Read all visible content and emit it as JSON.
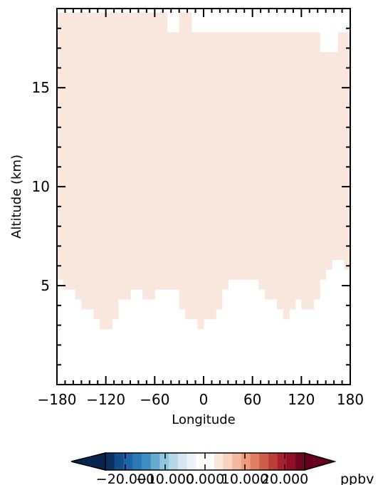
{
  "chart_data": {
    "type": "heatmap",
    "title": "",
    "xlabel": "Longitude",
    "ylabel": "Altitude (km)",
    "xlim": [
      -180,
      180
    ],
    "ylim": [
      0,
      19
    ],
    "xticks": [
      -180,
      -120,
      -60,
      0,
      60,
      120,
      180
    ],
    "xtick_labels": [
      "−180",
      "−120",
      "−60",
      "0",
      "60",
      "120",
      "180"
    ],
    "yticks": [
      5,
      10,
      15
    ],
    "ytick_labels": [
      "5",
      "10",
      "15"
    ],
    "grid": false,
    "fill_color": "#f9e6dc",
    "fill_value_ppbv": 0.5,
    "filled_region_by_longitude_bin": {
      "bin_width_deg": 7.5,
      "lon_start": -180,
      "bottom_km": [
        5.3,
        4.8,
        4.8,
        4.3,
        3.8,
        3.8,
        3.3,
        2.8,
        2.8,
        3.3,
        4.3,
        4.3,
        4.8,
        4.8,
        4.3,
        4.3,
        4.8,
        4.8,
        4.8,
        4.8,
        3.8,
        3.3,
        3.3,
        2.8,
        3.3,
        3.3,
        3.8,
        4.8,
        5.3,
        5.3,
        5.3,
        5.3,
        5.3,
        4.8,
        4.3,
        4.3,
        3.8,
        3.3,
        3.8,
        4.3,
        3.8,
        3.8,
        4.3,
        5.3,
        5.8,
        6.3,
        6.3,
        5.8
      ],
      "top_km": [
        18.8,
        18.8,
        18.8,
        18.8,
        18.8,
        18.8,
        18.8,
        18.8,
        18.8,
        18.8,
        18.8,
        18.8,
        18.8,
        18.8,
        18.8,
        18.8,
        18.8,
        18.8,
        17.8,
        17.8,
        18.8,
        18.8,
        17.8,
        17.8,
        17.8,
        17.8,
        17.8,
        17.8,
        17.8,
        17.8,
        17.8,
        17.8,
        17.8,
        17.8,
        17.8,
        17.8,
        17.8,
        17.8,
        17.8,
        17.8,
        17.8,
        17.8,
        17.8,
        16.8,
        16.8,
        16.8,
        17.8,
        17.8
      ]
    },
    "colorbar": {
      "unit_label": "ppbv",
      "range": [
        -25,
        25
      ],
      "tick_labels": [
        "−20.000",
        "−10.000",
        "0.000",
        "10.000",
        "20.000"
      ],
      "tick_values": [
        -20,
        -10,
        0,
        10,
        20
      ],
      "colors": [
        "#0a2f5e",
        "#144b8a",
        "#1f63a8",
        "#2c77b8",
        "#3f8ec3",
        "#68a9d0",
        "#92c5de",
        "#b5d6e8",
        "#d5e6f1",
        "#ecf3f8",
        "#ffffff",
        "#ffffff",
        "#f9e6dc",
        "#f7d3c0",
        "#f4b99e",
        "#ee9c7d",
        "#e07e63",
        "#cf5d4d",
        "#bd3d3a",
        "#a92031",
        "#8f0f27",
        "#6d0420"
      ],
      "under_color": "#08264d",
      "over_color": "#67001f"
    }
  }
}
